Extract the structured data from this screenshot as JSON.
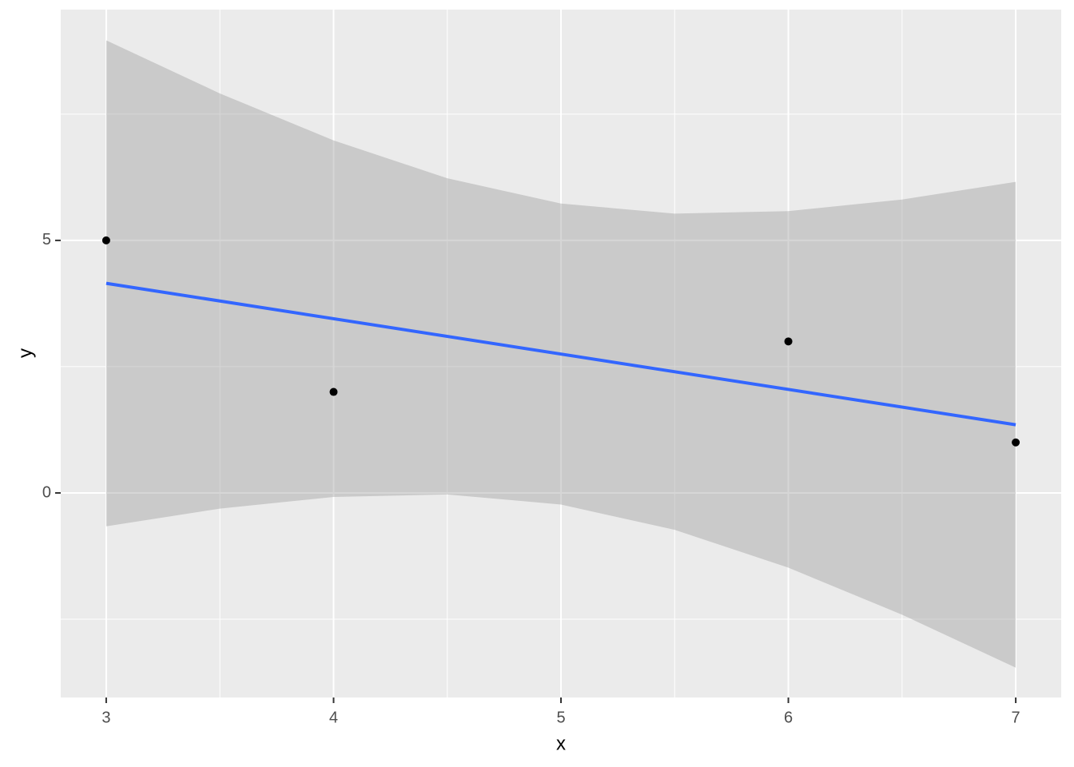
{
  "chart_data": {
    "type": "scatter",
    "x": [
      3,
      4,
      6,
      7
    ],
    "values": [
      5,
      2,
      3,
      1
    ],
    "color": "#000000",
    "smooth": {
      "x": [
        3,
        7
      ],
      "values": [
        4.15,
        1.35
      ],
      "color": "#3366FF"
    },
    "band": {
      "x": [
        3,
        3.5,
        4,
        4.5,
        5,
        5.5,
        6,
        6.5,
        7
      ],
      "lower": [
        -0.66,
        -0.31,
        -0.08,
        -0.03,
        -0.23,
        -0.73,
        -1.48,
        -2.41,
        -3.46
      ],
      "upper": [
        8.96,
        7.91,
        6.98,
        6.23,
        5.73,
        5.53,
        5.58,
        5.81,
        6.16
      ],
      "color": "#999999"
    },
    "xlabel": "x",
    "ylabel": "y",
    "xlim": [
      2.8,
      7.2
    ],
    "ylim": [
      -4.05,
      9.57
    ],
    "xticks": [
      3,
      4,
      5,
      6,
      7
    ],
    "yticks": [
      0,
      5
    ],
    "xminor": [
      3.5,
      4.5,
      5.5,
      6.5
    ],
    "yminor": [
      -2.5,
      2.5,
      7.5
    ],
    "grid": true
  }
}
